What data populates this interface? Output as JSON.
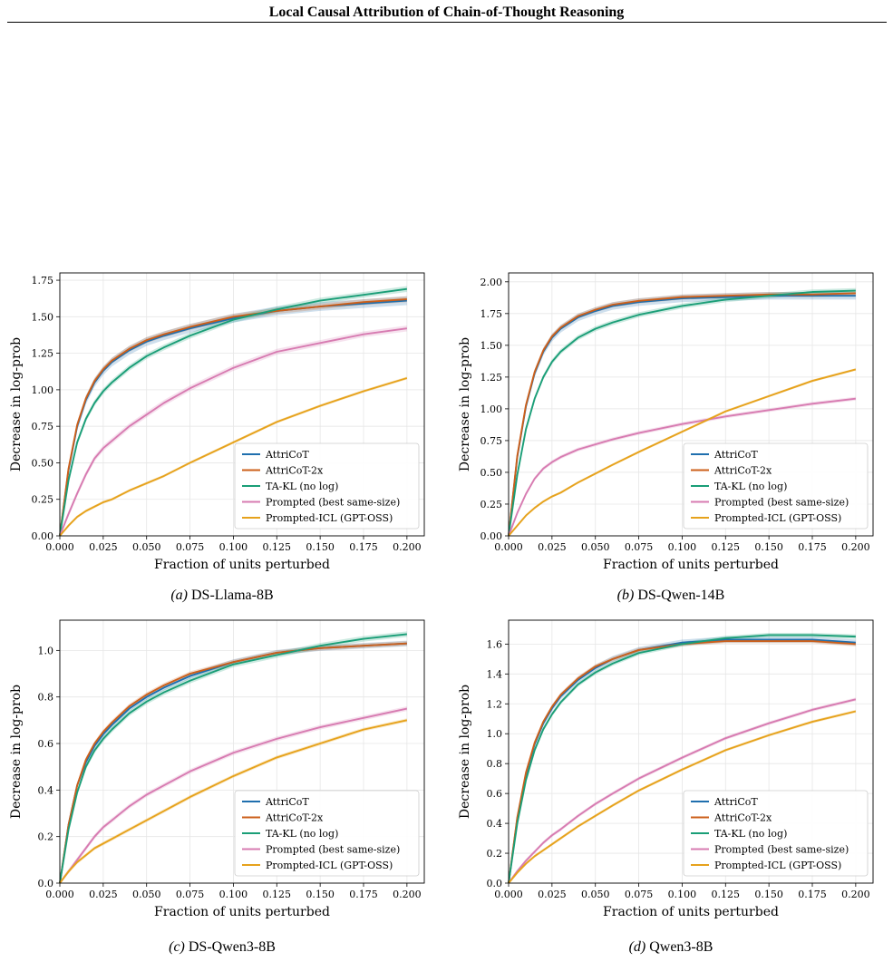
{
  "header": {
    "title": "Local Causal Attribution of Chain-of-Thought Reasoning"
  },
  "colors": {
    "AttriCoT": "#1f6fae",
    "AttriCoT-2x": "#cc5f1a",
    "TA-KL (no log)": "#1a9e77",
    "Prompted (best same-size)": "#d77bb1",
    "Prompted-ICL (GPT-OSS)": "#e6a21c"
  },
  "chart_data": [
    {
      "id": "a",
      "type": "line",
      "caption_letter": "(a)",
      "caption_text": "DS-Llama-8B",
      "xlabel": "Fraction of units perturbed",
      "ylabel": "Decrease in log-prob",
      "xlim": [
        0,
        0.21
      ],
      "ylim": [
        0,
        1.8
      ],
      "xticks": [
        0,
        0.025,
        0.05,
        0.075,
        0.1,
        0.125,
        0.15,
        0.175,
        0.2
      ],
      "xtick_labels": [
        "0.000",
        "0.025",
        "0.050",
        "0.075",
        "0.100",
        "0.125",
        "0.150",
        "0.175",
        "0.200"
      ],
      "yticks": [
        0,
        0.25,
        0.5,
        0.75,
        1.0,
        1.25,
        1.5,
        1.75
      ],
      "ytick_labels": [
        "0.00",
        "0.25",
        "0.50",
        "0.75",
        "1.00",
        "1.25",
        "1.50",
        "1.75"
      ],
      "grid": true,
      "legend_position": "lower-right",
      "x": [
        0,
        0.005,
        0.01,
        0.015,
        0.02,
        0.025,
        0.03,
        0.04,
        0.05,
        0.06,
        0.075,
        0.1,
        0.125,
        0.15,
        0.175,
        0.2
      ],
      "series": [
        {
          "name": "AttriCoT",
          "band": 0.03,
          "values": [
            0,
            0.45,
            0.75,
            0.93,
            1.05,
            1.13,
            1.19,
            1.27,
            1.33,
            1.37,
            1.42,
            1.49,
            1.54,
            1.57,
            1.59,
            1.61
          ]
        },
        {
          "name": "AttriCoT-2x",
          "band": 0.02,
          "values": [
            0,
            0.46,
            0.76,
            0.94,
            1.06,
            1.14,
            1.2,
            1.28,
            1.34,
            1.38,
            1.43,
            1.5,
            1.54,
            1.57,
            1.6,
            1.62
          ]
        },
        {
          "name": "TA-KL (no log)",
          "band": 0.02,
          "values": [
            0,
            0.38,
            0.64,
            0.8,
            0.91,
            0.99,
            1.05,
            1.15,
            1.23,
            1.29,
            1.37,
            1.48,
            1.55,
            1.61,
            1.65,
            1.69
          ]
        },
        {
          "name": "Prompted (best same-size)",
          "band": 0.02,
          "values": [
            0,
            0.15,
            0.29,
            0.42,
            0.53,
            0.6,
            0.65,
            0.75,
            0.83,
            0.91,
            1.01,
            1.15,
            1.26,
            1.32,
            1.38,
            1.42
          ]
        },
        {
          "name": "Prompted-ICL (GPT-OSS)",
          "band": 0.01,
          "values": [
            0,
            0.07,
            0.13,
            0.17,
            0.2,
            0.23,
            0.25,
            0.31,
            0.36,
            0.41,
            0.5,
            0.64,
            0.78,
            0.89,
            0.99,
            1.08
          ]
        }
      ]
    },
    {
      "id": "b",
      "type": "line",
      "caption_letter": "(b)",
      "caption_text": "DS-Qwen-14B",
      "xlabel": "Fraction of units perturbed",
      "ylabel": "Decrease in log-prob",
      "xlim": [
        0,
        0.21
      ],
      "ylim": [
        0,
        2.07
      ],
      "xticks": [
        0,
        0.025,
        0.05,
        0.075,
        0.1,
        0.125,
        0.15,
        0.175,
        0.2
      ],
      "xtick_labels": [
        "0.000",
        "0.025",
        "0.050",
        "0.075",
        "0.100",
        "0.125",
        "0.150",
        "0.175",
        "0.200"
      ],
      "yticks": [
        0,
        0.25,
        0.5,
        0.75,
        1.0,
        1.25,
        1.5,
        1.75,
        2.0
      ],
      "ytick_labels": [
        "0.00",
        "0.25",
        "0.50",
        "0.75",
        "1.00",
        "1.25",
        "1.50",
        "1.75",
        "2.00"
      ],
      "grid": true,
      "legend_position": "lower-right",
      "x": [
        0,
        0.005,
        0.01,
        0.015,
        0.02,
        0.025,
        0.03,
        0.04,
        0.05,
        0.06,
        0.075,
        0.1,
        0.125,
        0.15,
        0.175,
        0.2
      ],
      "series": [
        {
          "name": "AttriCoT",
          "band": 0.03,
          "values": [
            0,
            0.62,
            1.02,
            1.28,
            1.45,
            1.56,
            1.63,
            1.72,
            1.77,
            1.81,
            1.84,
            1.87,
            1.88,
            1.89,
            1.89,
            1.89
          ]
        },
        {
          "name": "AttriCoT-2x",
          "band": 0.02,
          "values": [
            0,
            0.63,
            1.03,
            1.29,
            1.46,
            1.57,
            1.64,
            1.73,
            1.78,
            1.82,
            1.85,
            1.88,
            1.89,
            1.9,
            1.9,
            1.91
          ]
        },
        {
          "name": "TA-KL (no log)",
          "band": 0.02,
          "values": [
            0,
            0.48,
            0.84,
            1.08,
            1.25,
            1.37,
            1.45,
            1.56,
            1.63,
            1.68,
            1.74,
            1.81,
            1.86,
            1.89,
            1.92,
            1.93
          ]
        },
        {
          "name": "Prompted (best same-size)",
          "band": 0.015,
          "values": [
            0,
            0.18,
            0.33,
            0.45,
            0.53,
            0.58,
            0.62,
            0.68,
            0.72,
            0.76,
            0.81,
            0.88,
            0.94,
            0.99,
            1.04,
            1.08
          ]
        },
        {
          "name": "Prompted-ICL (GPT-OSS)",
          "band": 0.01,
          "values": [
            0,
            0.08,
            0.16,
            0.22,
            0.27,
            0.31,
            0.34,
            0.42,
            0.49,
            0.56,
            0.66,
            0.82,
            0.98,
            1.1,
            1.22,
            1.31
          ]
        }
      ]
    },
    {
      "id": "c",
      "type": "line",
      "caption_letter": "(c)",
      "caption_text": "DS-Qwen3-8B",
      "xlabel": "Fraction of units perturbed",
      "ylabel": "Decrease in log-prob",
      "xlim": [
        0,
        0.21
      ],
      "ylim": [
        0,
        1.13
      ],
      "xticks": [
        0,
        0.025,
        0.05,
        0.075,
        0.1,
        0.125,
        0.15,
        0.175,
        0.2
      ],
      "xtick_labels": [
        "0.000",
        "0.025",
        "0.050",
        "0.075",
        "0.100",
        "0.125",
        "0.150",
        "0.175",
        "0.200"
      ],
      "yticks": [
        0,
        0.2,
        0.4,
        0.6,
        0.8,
        1.0
      ],
      "ytick_labels": [
        "0.0",
        "0.2",
        "0.4",
        "0.6",
        "0.8",
        "1.0"
      ],
      "grid": true,
      "legend_position": "lower-right",
      "x": [
        0,
        0.005,
        0.01,
        0.015,
        0.02,
        0.025,
        0.03,
        0.04,
        0.05,
        0.06,
        0.075,
        0.1,
        0.125,
        0.15,
        0.175,
        0.2
      ],
      "series": [
        {
          "name": "AttriCoT",
          "band": 0.012,
          "values": [
            0,
            0.25,
            0.42,
            0.52,
            0.59,
            0.64,
            0.68,
            0.75,
            0.8,
            0.84,
            0.89,
            0.95,
            0.99,
            1.01,
            1.02,
            1.03
          ]
        },
        {
          "name": "AttriCoT-2x",
          "band": 0.01,
          "values": [
            0,
            0.25,
            0.42,
            0.53,
            0.6,
            0.65,
            0.69,
            0.76,
            0.81,
            0.85,
            0.9,
            0.95,
            0.99,
            1.01,
            1.02,
            1.03
          ]
        },
        {
          "name": "TA-KL (no log)",
          "band": 0.012,
          "values": [
            0,
            0.23,
            0.39,
            0.5,
            0.57,
            0.62,
            0.66,
            0.73,
            0.78,
            0.82,
            0.87,
            0.94,
            0.98,
            1.02,
            1.05,
            1.07
          ]
        },
        {
          "name": "Prompted (best same-size)",
          "band": 0.01,
          "values": [
            0,
            0.05,
            0.1,
            0.15,
            0.2,
            0.24,
            0.27,
            0.33,
            0.38,
            0.42,
            0.48,
            0.56,
            0.62,
            0.67,
            0.71,
            0.75
          ]
        },
        {
          "name": "Prompted-ICL (GPT-OSS)",
          "band": 0.008,
          "values": [
            0,
            0.05,
            0.09,
            0.12,
            0.15,
            0.17,
            0.19,
            0.23,
            0.27,
            0.31,
            0.37,
            0.46,
            0.54,
            0.6,
            0.66,
            0.7
          ]
        }
      ]
    },
    {
      "id": "d",
      "type": "line",
      "caption_letter": "(d)",
      "caption_text": "Qwen3-8B",
      "xlabel": "Fraction of units perturbed",
      "ylabel": "Decrease in log-prob",
      "xlim": [
        0,
        0.21
      ],
      "ylim": [
        0,
        1.76
      ],
      "xticks": [
        0,
        0.025,
        0.05,
        0.075,
        0.1,
        0.125,
        0.15,
        0.175,
        0.2
      ],
      "xtick_labels": [
        "0.000",
        "0.025",
        "0.050",
        "0.075",
        "0.100",
        "0.125",
        "0.150",
        "0.175",
        "0.200"
      ],
      "yticks": [
        0,
        0.2,
        0.4,
        0.6,
        0.8,
        1.0,
        1.2,
        1.4,
        1.6
      ],
      "ytick_labels": [
        "0.0",
        "0.2",
        "0.4",
        "0.6",
        "0.8",
        "1.0",
        "1.2",
        "1.4",
        "1.6"
      ],
      "grid": true,
      "legend_position": "lower-right",
      "x": [
        0,
        0.005,
        0.01,
        0.015,
        0.02,
        0.025,
        0.03,
        0.04,
        0.05,
        0.06,
        0.075,
        0.1,
        0.125,
        0.15,
        0.175,
        0.2
      ],
      "series": [
        {
          "name": "AttriCoT",
          "band": 0.02,
          "values": [
            0,
            0.43,
            0.73,
            0.93,
            1.07,
            1.17,
            1.25,
            1.36,
            1.44,
            1.5,
            1.56,
            1.61,
            1.63,
            1.63,
            1.63,
            1.61
          ]
        },
        {
          "name": "AttriCoT-2x",
          "band": 0.015,
          "values": [
            0,
            0.44,
            0.74,
            0.94,
            1.08,
            1.18,
            1.26,
            1.37,
            1.45,
            1.5,
            1.56,
            1.6,
            1.62,
            1.62,
            1.62,
            1.6
          ]
        },
        {
          "name": "TA-KL (no log)",
          "band": 0.015,
          "values": [
            0,
            0.4,
            0.69,
            0.89,
            1.03,
            1.13,
            1.21,
            1.33,
            1.41,
            1.47,
            1.54,
            1.6,
            1.64,
            1.66,
            1.66,
            1.65
          ]
        },
        {
          "name": "Prompted (best same-size)",
          "band": 0.012,
          "values": [
            0,
            0.08,
            0.15,
            0.21,
            0.27,
            0.32,
            0.36,
            0.45,
            0.53,
            0.6,
            0.7,
            0.84,
            0.97,
            1.07,
            1.16,
            1.23
          ]
        },
        {
          "name": "Prompted-ICL (GPT-OSS)",
          "band": 0.01,
          "values": [
            0,
            0.07,
            0.13,
            0.18,
            0.22,
            0.26,
            0.3,
            0.38,
            0.45,
            0.52,
            0.62,
            0.76,
            0.89,
            0.99,
            1.08,
            1.15
          ]
        }
      ]
    }
  ]
}
